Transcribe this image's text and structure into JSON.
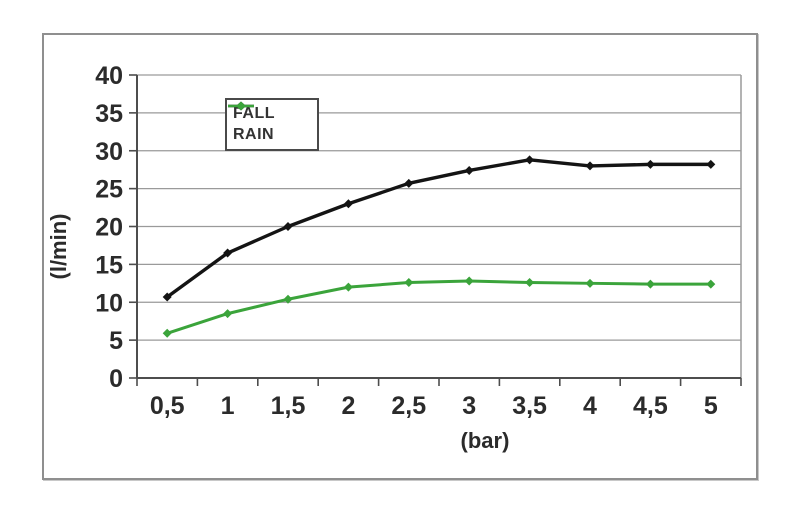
{
  "figure": {
    "background_color": "#ffffff",
    "frame_border_color": "#8f8f8f",
    "gridline_color": "#9a9a9a",
    "axis_line_color": "#4d4d4d",
    "tick_text_color": "#2b2b2b"
  },
  "legend": {
    "border_color": "#4a4a4a",
    "entries": [
      {
        "label": "FALL",
        "marker": "diamond-line"
      },
      {
        "label": "RAIN",
        "marker": "diamond-line"
      }
    ]
  },
  "chart_data": {
    "type": "line",
    "title": "",
    "xlabel": "(bar)",
    "ylabel": "(l/min)",
    "x": [
      0.5,
      1,
      1.5,
      2,
      2.5,
      3,
      3.5,
      4,
      4.5,
      5
    ],
    "x_tick_labels": [
      "0,5",
      "1",
      "1,5",
      "2",
      "2,5",
      "3",
      "3,5",
      "4",
      "4,5",
      "5"
    ],
    "y_ticks": [
      0,
      5,
      10,
      15,
      20,
      25,
      30,
      35,
      40
    ],
    "ylim": [
      0,
      40
    ],
    "grid": "horizontal",
    "legend_position": "inside-top-center",
    "marker_shape": "diamond",
    "series": [
      {
        "name": "FALL",
        "color": "#141414",
        "line_width": 3.4,
        "values": [
          10.7,
          16.5,
          20.0,
          23.0,
          25.7,
          27.4,
          28.8,
          28.0,
          28.2,
          28.2
        ]
      },
      {
        "name": "RAIN",
        "color": "#3ba43b",
        "line_width": 3.0,
        "values": [
          5.9,
          8.5,
          10.4,
          12.0,
          12.6,
          12.8,
          12.6,
          12.5,
          12.4,
          12.4
        ]
      }
    ]
  }
}
